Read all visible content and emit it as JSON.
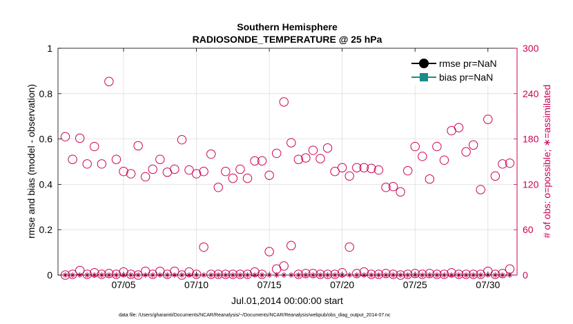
{
  "chart_data": {
    "type": "scatter",
    "title": "Southern Hemisphere",
    "subtitle": "RADIOSONDE_TEMPERATURE @ 25 hPa",
    "xlabel": "Jul.01,2014 00:00:00 start",
    "ylabel_left": "rmse and bias (model - observation)",
    "ylabel_right": "# of obs: o=possible; ∗=assimilated",
    "footnote": "data file: /Users/gharamti/Documents/NCAR/Reanalysis/~/Documents/NCAR/Reanalysis/webpub/obs_diag_output_2014-07.nc",
    "xlim": [
      0.5,
      32.0
    ],
    "ylim_left": [
      0,
      1
    ],
    "ylim_right": [
      0,
      300
    ],
    "x_ticks": [
      5,
      10,
      15,
      20,
      25,
      30
    ],
    "x_tick_labels": [
      "07/05",
      "07/10",
      "07/15",
      "07/20",
      "07/25",
      "07/30"
    ],
    "y_ticks_left": [
      0,
      0.2,
      0.4,
      0.6,
      0.8,
      1
    ],
    "y_tick_labels_left": [
      "0",
      "0.2",
      "0.4",
      "0.6",
      "0.8",
      "1"
    ],
    "y_ticks_right": [
      0,
      60,
      120,
      180,
      240,
      300
    ],
    "y_tick_labels_right": [
      "0",
      "60",
      "120",
      "180",
      "240",
      "300"
    ],
    "legend": [
      {
        "name": "rmse pr=NaN",
        "color": "#000000",
        "marker": "circle"
      },
      {
        "name": "bias pr=NaN",
        "color": "#1a8a8a",
        "marker": "square"
      }
    ],
    "legend_position": "top-right",
    "grid": true,
    "colors": {
      "left_axis": "#000000",
      "right_axis": "#cc0055",
      "grid": "#dddddd"
    },
    "series": [
      {
        "name": "# of obs possible (large)",
        "axis": "right",
        "marker": "open-circle",
        "x": [
          1.0,
          1.5,
          2.0,
          2.5,
          3.0,
          3.5,
          4.0,
          4.5,
          5.0,
          5.5,
          6.0,
          6.5,
          7.0,
          7.5,
          8.0,
          8.5,
          9.0,
          9.5,
          10.0,
          10.5,
          11.0,
          11.5,
          12.0,
          12.5,
          13.0,
          13.5,
          14.0,
          14.5,
          15.0,
          15.5,
          16.0,
          16.5,
          17.0,
          17.5,
          18.0,
          18.5,
          19.0,
          19.5,
          20.0,
          20.5,
          21.0,
          21.5,
          22.0,
          22.5,
          23.0,
          23.5,
          24.0,
          24.5,
          25.0,
          25.5,
          26.0,
          26.5,
          27.0,
          27.5,
          28.0,
          28.5,
          29.0,
          29.5,
          30.0,
          30.5,
          31.0,
          31.5
        ],
        "values": [
          183,
          153,
          181,
          147,
          170,
          147,
          256,
          153,
          137,
          134,
          171,
          130,
          140,
          153,
          136,
          140,
          179,
          139,
          134,
          137,
          160,
          116,
          137,
          128,
          140,
          128,
          151,
          151,
          132,
          161,
          229,
          175,
          153,
          155,
          165,
          154,
          168,
          137,
          142,
          131,
          142,
          142,
          141,
          139,
          116,
          117,
          110,
          138,
          170,
          157,
          127,
          170,
          152,
          191,
          195,
          163,
          172,
          113,
          206,
          131,
          147,
          148
        ]
      },
      {
        "name": "# of obs possible (small)",
        "axis": "right",
        "marker": "open-circle",
        "x": [
          1.0,
          1.5,
          2.0,
          2.5,
          3.0,
          3.5,
          4.0,
          4.5,
          5.0,
          5.5,
          6.0,
          6.5,
          7.0,
          7.5,
          8.0,
          8.5,
          9.0,
          9.5,
          10.0,
          10.5,
          11.0,
          11.5,
          12.0,
          12.5,
          13.0,
          13.5,
          14.0,
          14.5,
          15.0,
          15.5,
          16.0,
          16.5,
          17.0,
          17.5,
          18.0,
          18.5,
          19.0,
          19.5,
          20.0,
          20.5,
          21.0,
          21.5,
          22.0,
          22.5,
          23.0,
          23.5,
          24.0,
          24.5,
          25.0,
          25.5,
          26.0,
          26.5,
          27.0,
          27.5,
          28.0,
          28.5,
          29.0,
          29.5,
          30.0,
          30.5,
          31.0,
          31.5
        ],
        "values": [
          0,
          1,
          6,
          1,
          3,
          1,
          2,
          1,
          4,
          1,
          0,
          5,
          1,
          5,
          1,
          5,
          0,
          4,
          1,
          37,
          1,
          1,
          1,
          1,
          1,
          1,
          4,
          1,
          31,
          8,
          12,
          39,
          1,
          2,
          2,
          1,
          1,
          1,
          3,
          37,
          2,
          4,
          1,
          1,
          2,
          1,
          0,
          1,
          2,
          1,
          2,
          1,
          1,
          3,
          1,
          1,
          1,
          1,
          5,
          1,
          2,
          8
        ]
      },
      {
        "name": "# of obs assimilated",
        "axis": "right",
        "marker": "star",
        "x": [
          1.0,
          1.5,
          2.0,
          2.5,
          3.0,
          3.5,
          4.0,
          4.5,
          5.0,
          5.5,
          6.0,
          6.5,
          7.0,
          7.5,
          8.0,
          8.5,
          9.0,
          9.5,
          10.0,
          10.5,
          11.0,
          11.5,
          12.0,
          12.5,
          13.0,
          13.5,
          14.0,
          14.5,
          15.0,
          15.5,
          16.0,
          16.5,
          17.0,
          17.5,
          18.0,
          18.5,
          19.0,
          19.5,
          20.0,
          20.5,
          21.0,
          21.5,
          22.0,
          22.5,
          23.0,
          23.5,
          24.0,
          24.5,
          25.0,
          25.5,
          26.0,
          26.5,
          27.0,
          27.5,
          28.0,
          28.5,
          29.0,
          29.5,
          30.0,
          30.5,
          31.0,
          31.5
        ],
        "values": [
          0,
          0,
          0,
          0,
          0,
          0,
          0,
          0,
          0,
          0,
          0,
          0,
          0,
          0,
          0,
          0,
          0,
          0,
          0,
          0,
          0,
          0,
          0,
          0,
          0,
          0,
          0,
          0,
          0,
          0,
          0,
          0,
          0,
          0,
          0,
          0,
          0,
          0,
          0,
          0,
          0,
          0,
          0,
          0,
          0,
          0,
          0,
          0,
          0,
          0,
          0,
          0,
          0,
          0,
          0,
          0,
          0,
          0,
          0,
          0,
          0,
          0
        ]
      }
    ]
  }
}
